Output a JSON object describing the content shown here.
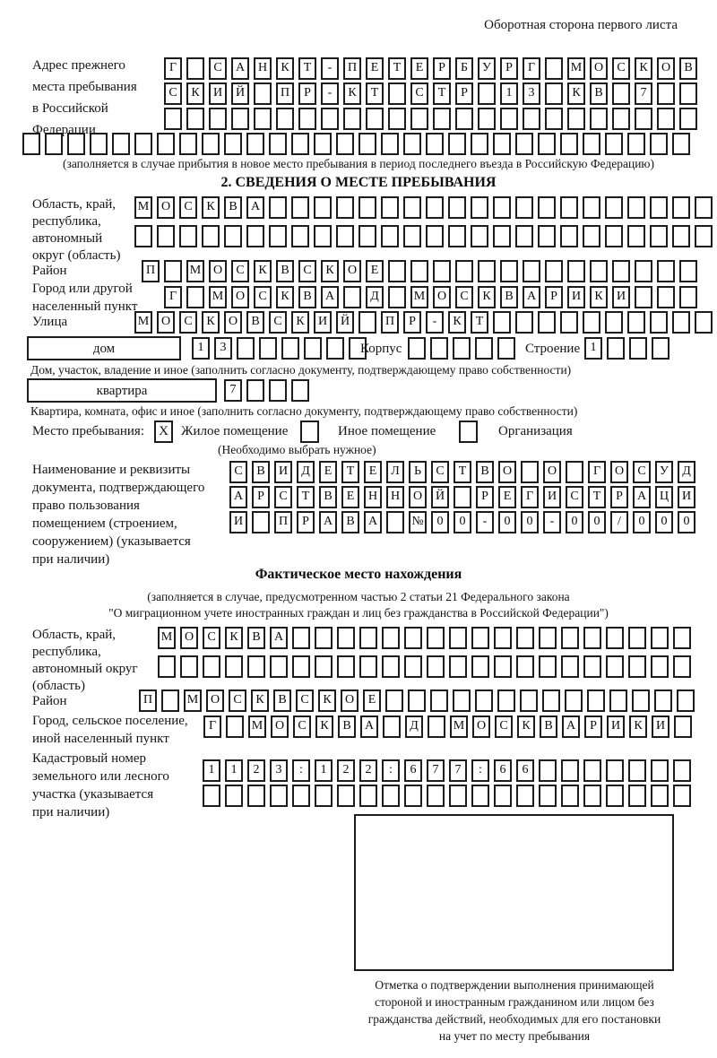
{
  "header": {
    "note": "Оборотная сторона первого листа"
  },
  "prev_address": {
    "label_lines": [
      "Адрес прежнего",
      "места пребывания",
      "в Российской",
      "Федерации"
    ],
    "rows": [
      {
        "chars": "Г САНКТ-ПЕТЕРБУРГ МОСКОВ",
        "count": 24
      },
      {
        "chars": "СКИЙ ПР-КТ СТР 13 КВ 7",
        "count": 24
      },
      {
        "chars": "",
        "count": 24
      },
      {
        "chars": "",
        "count": 30
      }
    ],
    "caption": "(заполняется в случае прибытия в новое место пребывания в период последнего въезда в Российскую Федерацию)"
  },
  "section2": {
    "title": "2. СВЕДЕНИЯ О МЕСТЕ ПРЕБЫВАНИЯ",
    "region": {
      "label_lines": [
        "Область, край,",
        "республика,",
        "автономный",
        "округ (область)"
      ],
      "rows": [
        {
          "chars": "МОСКВА",
          "count": 26
        },
        {
          "chars": "",
          "count": 26
        }
      ]
    },
    "district": {
      "label": "Район",
      "row": {
        "chars": "П МОСКВСКОЕ",
        "count": 25
      }
    },
    "city": {
      "label_lines": [
        "Город или другой",
        "населенный пункт"
      ],
      "row": {
        "chars": "Г МОСКВА Д МОСКВАРИКИ",
        "count": 24
      }
    },
    "street": {
      "label": "Улица",
      "row": {
        "chars": "МОСКОВСКИЙ ПР-КТ",
        "count": 26
      }
    },
    "house": {
      "field_label": "дом",
      "number_row": {
        "chars": "13",
        "count": 8
      },
      "korpus_label": "Корпус",
      "korpus_row": {
        "chars": "",
        "count": 5
      },
      "stroenie_label": "Строение",
      "stroenie_row": {
        "chars": "1",
        "count": 4
      },
      "caption": "Дом, участок, владение и иное (заполнить согласно документу, подтверждающему право собственности)"
    },
    "apartment": {
      "field_label": "квартира",
      "row": {
        "chars": "7",
        "count": 4
      },
      "caption": "Квартира, комната, офис и иное (заполнить согласно документу, подтверждающему право собственности)"
    },
    "place_type": {
      "label": "Место пребывания:",
      "mark": "X",
      "options": [
        "Жилое помещение",
        "Иное помещение",
        "Организация"
      ],
      "hint": "(Необходимо выбрать нужное)"
    },
    "document": {
      "label_lines": [
        "Наименование и реквизиты",
        "документа, подтверждающего",
        "право пользования",
        "помещением (строением,",
        "сооружением) (указывается",
        "при наличии)"
      ],
      "rows": [
        {
          "chars": "СВИДЕТЕЛЬСТВО О ГОСУД",
          "count": 21
        },
        {
          "chars": "АРСТВЕННОЙ РЕГИСТРАЦИ",
          "count": 21
        },
        {
          "chars": "И ПРАВА №00-00-00/000",
          "count": 21
        }
      ]
    }
  },
  "actual_location": {
    "title": "Фактическое место нахождения",
    "caption_lines": [
      "(заполняется в случае, предусмотренном частью 2 статьи 21 Федерального закона",
      "\"О миграционном учете иностранных граждан и лиц без гражданства в Российской Федерации\")"
    ],
    "region": {
      "label_lines": [
        "Область, край,",
        "республика,",
        "автономный округ",
        "(область)"
      ],
      "rows": [
        {
          "chars": "МОСКВА",
          "count": 24
        },
        {
          "chars": "",
          "count": 24
        }
      ]
    },
    "district": {
      "label": "Район",
      "row": {
        "chars": "П МОСКВСКОЕ",
        "count": 25
      }
    },
    "city": {
      "label_lines": [
        "Город, сельское поселение,",
        "иной населенный пункт"
      ],
      "row": {
        "chars": "Г МОСКВА Д МОСКВАРИКИ",
        "count": 22
      }
    },
    "cadastral": {
      "label_lines": [
        "Кадастровый номер",
        "земельного или лесного",
        "участка (указывается",
        "при наличии)"
      ],
      "rows": [
        {
          "chars": "1123:122:677:66",
          "count": 22
        },
        {
          "chars": "",
          "count": 22
        }
      ]
    },
    "stamp_caption_lines": [
      "Отметка о подтверждении выполнения принимающей",
      "стороной и иностранным гражданином или лицом без",
      "гражданства действий, необходимых для его постановки",
      "на учет по месту пребывания"
    ]
  }
}
